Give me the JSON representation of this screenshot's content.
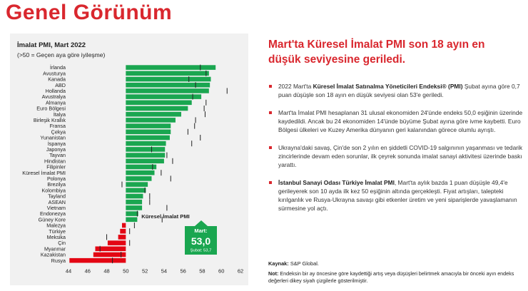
{
  "page": {
    "title": "Genel Görünüm",
    "headline": "Mart'ta Küresel İmalat PMI son 18 ayın en düşük seviyesine geriledi.",
    "bullets": [
      {
        "bold_prefix": "",
        "text": "2022 Mart'ta ",
        "bold": "Küresel İmalat Satınalma Yöneticileri Endeksi® (PMI)",
        "rest": " Şubat ayına göre 0,7 puan düşüşle son 18 ayın en düşük seviyesi olan 53'e geriledi."
      },
      {
        "bold_prefix": "",
        "text": "Mart'ta İmalat PMI hesaplanan 31 ulusal ekonomiden 24'ünde endeks 50,0 eşiğinin üzerinde kaydedildi. Ancak bu 24 ekonomiden 14'ünde büyüme Şubat ayına göre ivme kaybetti. Euro Bölgesi ülkeleri ve Kuzey Amerika dünyanın geri kalanından görece olumlu ayrıştı.",
        "bold": "",
        "rest": ""
      },
      {
        "bold_prefix": "",
        "text": "Ukrayna'daki savaş, Çin'de son 2 yılın en şiddetli COVID-19 salgınının yaşanması ve tedarik zincirlerinde devam eden sorunlar, ilk çeyrek sonunda imalat sanayi aktivitesi üzerinde baskı yarattı.",
        "bold": "",
        "rest": ""
      },
      {
        "bold_prefix": "İstanbul Sanayi Odası Türkiye İmalat PMI",
        "text": "",
        "bold": "",
        "rest": ", Mart'ta aylık bazda 1 puan düşüşle 49,4'e gerileyerek son 10 ayda ilk kez 50 eşiğinin altında gerçekleşti. Fiyat artışları, talepteki kırılganlık ve Rusya-Ukrayna savaşı gibi etkenler üretim ve yeni siparişlerde yavaşlamanın sürmesine yol açtı."
      }
    ],
    "source_label": "Kaynak:",
    "source_text": " S&P Global.",
    "note_label": "Not:",
    "note_text": " Endeksin bir ay öncesine göre kaydettiği artış veya düşüşleri belirtmek amacıyla bir önceki ayın endeks değerleri dikey siyah çizgilerle gösterilmiştir."
  },
  "colors": {
    "accent": "#d9272e",
    "bar_positive": "#1aa650",
    "bar_negative": "#e30613",
    "callout_bg": "#1aa650",
    "panel_bg": "#f1f1f1",
    "marker": "#222222"
  },
  "chart_data": {
    "type": "bar",
    "orientation": "horizontal",
    "title": "İmalat PMI, Mart 2022",
    "subtitle": "(>50 = Geçen aya göre iyileşme)",
    "baseline": 50,
    "xlim": [
      44,
      62
    ],
    "xticks": [
      44,
      46,
      48,
      50,
      52,
      54,
      56,
      58,
      60,
      62
    ],
    "grid": false,
    "legend": "none",
    "categories": [
      "İrlanda",
      "Avusturya",
      "Kanada",
      "ABD",
      "Hollanda",
      "Avustralya",
      "Almanya",
      "Euro Bölgesi",
      "İtalya",
      "Birleşik Krallık",
      "Fransa",
      "Çekya",
      "Yunanistan",
      "İspanya",
      "Japonya",
      "Tayvan",
      "Hindistan",
      "Filipinler",
      "Küresel İmalat PMI",
      "Polonya",
      "Brezilya",
      "Kolombiya",
      "Tayland",
      "ASEAN",
      "Vietnam",
      "Endonezya",
      "Güney Kore",
      "Malezya",
      "Türkiye",
      "Meksika",
      "Çin",
      "Myanmar",
      "Kazakistan",
      "Rusya"
    ],
    "series": [
      {
        "name": "Mart",
        "values": [
          59.4,
          58.7,
          58.9,
          58.8,
          58.7,
          57.9,
          56.9,
          56.5,
          55.8,
          55.2,
          54.7,
          54.7,
          54.6,
          54.2,
          54.1,
          54.1,
          54.0,
          53.2,
          53.0,
          52.7,
          52.3,
          52.1,
          51.8,
          51.7,
          51.7,
          51.3,
          51.2,
          49.6,
          49.4,
          49.2,
          48.1,
          46.8,
          46.6,
          44.1
        ]
      },
      {
        "name": "Şubat",
        "values": [
          57.8,
          58.4,
          56.6,
          57.3,
          60.6,
          57.0,
          58.4,
          58.2,
          58.3,
          57.3,
          57.2,
          56.5,
          57.8,
          56.9,
          52.7,
          54.3,
          54.9,
          52.8,
          53.7,
          54.7,
          49.6,
          52.0,
          52.5,
          52.5,
          54.3,
          51.2,
          53.8,
          50.9,
          50.4,
          48.0,
          50.4,
          47.3,
          49.5,
          48.6
        ]
      }
    ],
    "callout": {
      "label": "Küresel İmalat PMI",
      "title": "Mart:",
      "value": "53,0",
      "prev": "Şubat: 53,7"
    }
  }
}
